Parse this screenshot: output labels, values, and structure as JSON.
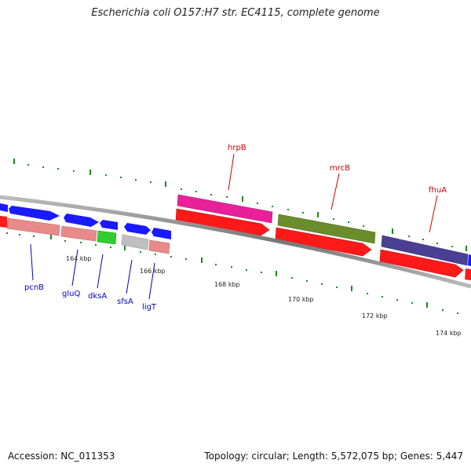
{
  "title": "Escherichia coli O157:H7 str. EC4115, complete genome",
  "footer": {
    "accession": "Accession: NC_011353",
    "summary": "Topology: circular; Length: 5,572,075 bp; Genes: 5,447"
  },
  "scale_labels": [
    "164 kbp",
    "166 kbp",
    "168 kbp",
    "170 kbp",
    "172 kbp",
    "174 kbp"
  ],
  "genes": {
    "forward": [
      {
        "name": "hrpB",
        "color": "#e8219a"
      },
      {
        "name": "mrcB",
        "color": "#6b8c2a"
      },
      {
        "name": "fhuA",
        "color": "#4b3f93"
      }
    ],
    "reverse": [
      {
        "name": "pcnB",
        "color": "#e88a8a"
      },
      {
        "name": "gluQ",
        "color": "#e88a8a"
      },
      {
        "name": "dksA",
        "color": "#33cc33"
      },
      {
        "name": "sfsA",
        "color": "#bfbfbf"
      },
      {
        "name": "ligT",
        "color": "#e88a8a"
      }
    ]
  },
  "colors": {
    "cds_blue": "#1a1aff",
    "cds_red": "#ff1a1a",
    "label_forward": "#cc0000",
    "label_reverse": "#0000cc",
    "tick": "#1a8c1a",
    "backbone": "#888888"
  }
}
